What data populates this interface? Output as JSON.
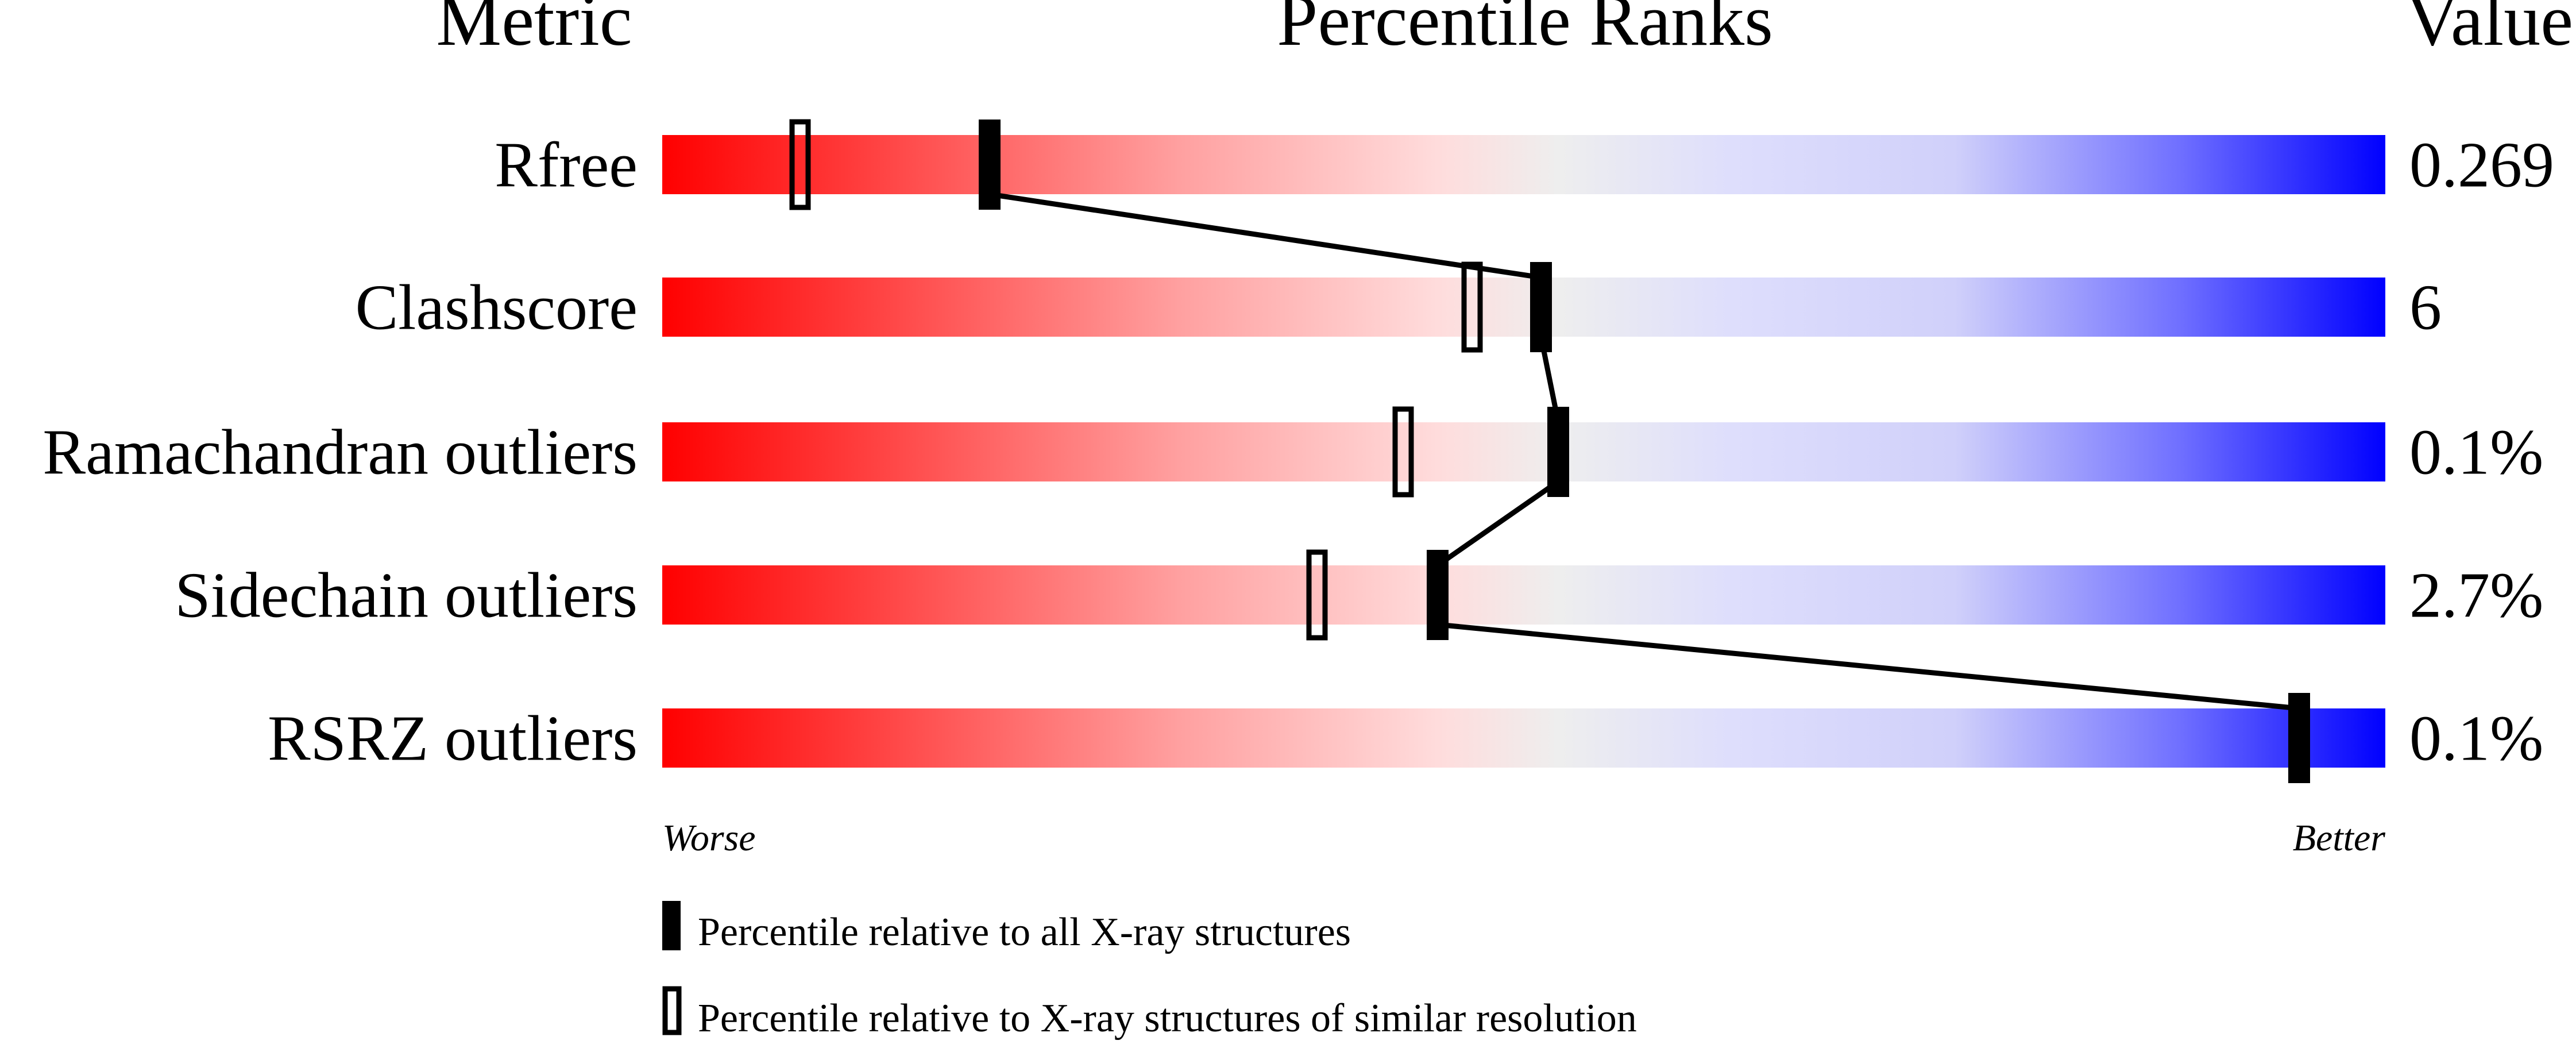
{
  "chart_data": {
    "type": "percentile-bars",
    "headers": {
      "metric": "Metric",
      "ranks": "Percentile Ranks",
      "value": "Value"
    },
    "xlim": [
      0,
      100
    ],
    "axis_labels": {
      "left": "Worse",
      "right": "Better"
    },
    "colors": {
      "worse": "#ff0000",
      "middle": "#eeeeee",
      "better": "#0000ff",
      "marker": "#000000"
    },
    "rows": [
      {
        "metric": "Rfree",
        "value": "0.269",
        "percentile_all": 19,
        "percentile_similar": 8
      },
      {
        "metric": "Clashscore",
        "value": "6",
        "percentile_all": 51,
        "percentile_similar": 47
      },
      {
        "metric": "Ramachandran outliers",
        "value": "0.1%",
        "percentile_all": 52,
        "percentile_similar": 43
      },
      {
        "metric": "Sidechain outliers",
        "value": "2.7%",
        "percentile_all": 45,
        "percentile_similar": 38
      },
      {
        "metric": "RSRZ outliers",
        "value": "0.1%",
        "percentile_all": 95,
        "percentile_similar": null
      }
    ],
    "legend": [
      {
        "marker": "filled",
        "label": "Percentile relative to all X-ray structures"
      },
      {
        "marker": "open",
        "label": "Percentile relative to X-ray structures of similar resolution"
      }
    ]
  }
}
